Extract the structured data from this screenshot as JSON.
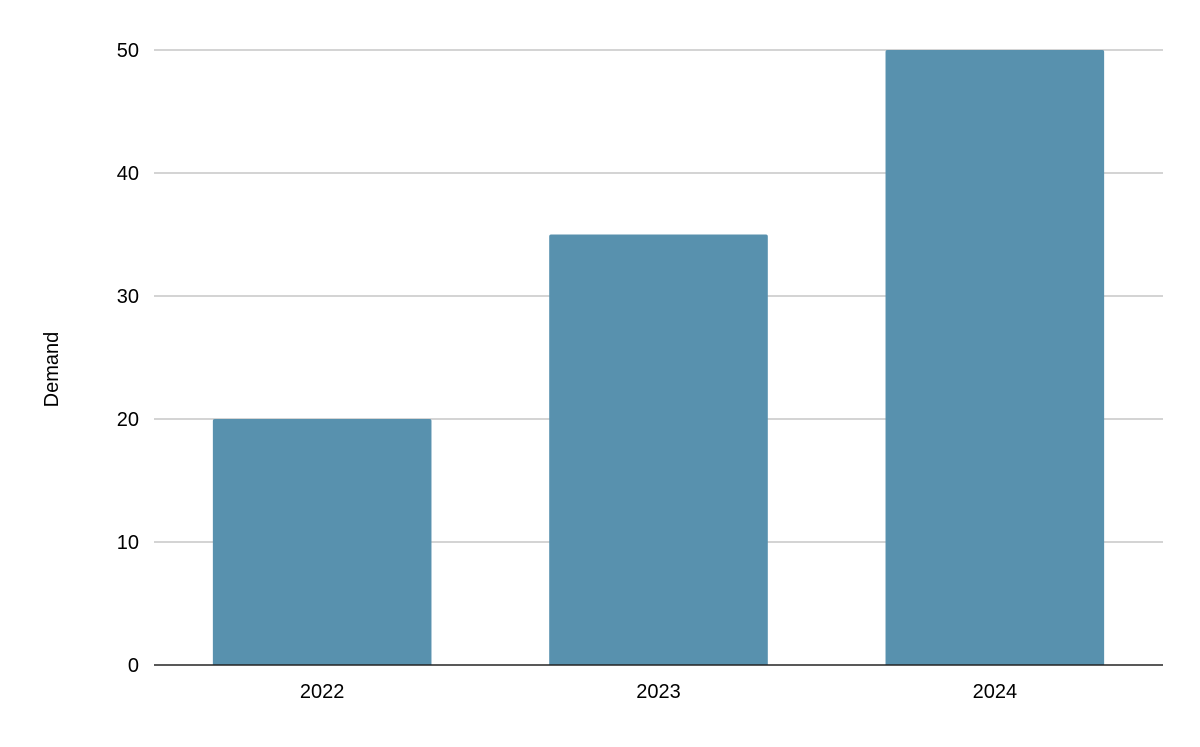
{
  "chart_data": {
    "type": "bar",
    "title": "",
    "xlabel": "",
    "ylabel": "Demand",
    "categories": [
      "2022",
      "2023",
      "2024"
    ],
    "series": [
      {
        "values": [
          20,
          35,
          50
        ]
      }
    ],
    "ylim": [
      0,
      50
    ],
    "yticks": [
      "0",
      "10",
      "20",
      "30",
      "40",
      "50"
    ],
    "grid": true,
    "legend": "none",
    "colors": {
      "bar": "#5891ae",
      "grid": "#c6c6c6",
      "baseline": "#222222"
    }
  }
}
